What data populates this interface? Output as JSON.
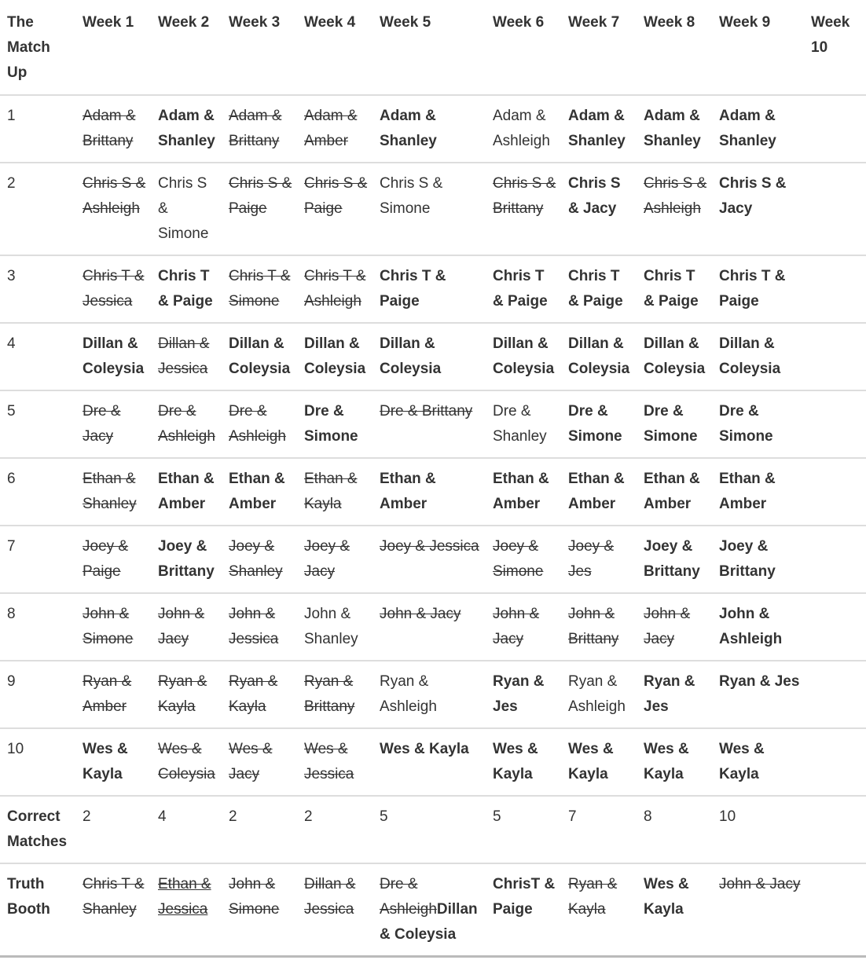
{
  "headers": [
    "The Match Up",
    "Week 1",
    "Week 2",
    "Week 3",
    "Week 4",
    "Week 5",
    "Week 6",
    "Week 7",
    "Week 8",
    "Week 9",
    "Week 10"
  ],
  "rows": [
    {
      "label": "1",
      "label_bold": false,
      "cells": [
        [
          {
            "t": "Adam & Brittany",
            "s": "s"
          }
        ],
        [
          {
            "t": "Adam & Shanley",
            "s": "b"
          }
        ],
        [
          {
            "t": "Adam & Brittany",
            "s": "s"
          }
        ],
        [
          {
            "t": "Adam & Amber",
            "s": "s"
          }
        ],
        [
          {
            "t": "Adam & Shanley",
            "s": "b"
          }
        ],
        [
          {
            "t": "Adam & Ashleigh",
            "s": "n"
          }
        ],
        [
          {
            "t": "Adam & Shanley",
            "s": "b"
          }
        ],
        [
          {
            "t": "Adam & Shanley",
            "s": "b"
          }
        ],
        [
          {
            "t": "Adam & Shanley",
            "s": "b"
          }
        ],
        []
      ]
    },
    {
      "label": "2",
      "label_bold": false,
      "cells": [
        [
          {
            "t": "Chris S & Ashleigh",
            "s": "s"
          }
        ],
        [
          {
            "t": "Chris S & Simone",
            "s": "n"
          }
        ],
        [
          {
            "t": "Chris S & Paige",
            "s": "s"
          }
        ],
        [
          {
            "t": "Chris S & Paige",
            "s": "s"
          }
        ],
        [
          {
            "t": "Chris S & Simone",
            "s": "n"
          }
        ],
        [
          {
            "t": "Chris S & Brittany",
            "s": "s"
          }
        ],
        [
          {
            "t": "Chris S & Jacy",
            "s": "b"
          }
        ],
        [
          {
            "t": "Chris S & Ashleigh",
            "s": "s"
          }
        ],
        [
          {
            "t": "Chris S & Jacy",
            "s": "b"
          }
        ],
        []
      ]
    },
    {
      "label": "3",
      "label_bold": false,
      "cells": [
        [
          {
            "t": "Chris T & Jessica",
            "s": "s"
          }
        ],
        [
          {
            "t": "Chris T & Paige",
            "s": "b"
          }
        ],
        [
          {
            "t": "Chris T & Simone",
            "s": "s"
          }
        ],
        [
          {
            "t": "Chris T & Ashleigh",
            "s": "s"
          }
        ],
        [
          {
            "t": "Chris T & Paige",
            "s": "b"
          }
        ],
        [
          {
            "t": "Chris T & Paige",
            "s": "b"
          }
        ],
        [
          {
            "t": "Chris T & Paige",
            "s": "b"
          }
        ],
        [
          {
            "t": "Chris T & Paige",
            "s": "b"
          }
        ],
        [
          {
            "t": "Chris T & Paige",
            "s": "b"
          }
        ],
        []
      ]
    },
    {
      "label": "4",
      "label_bold": false,
      "cells": [
        [
          {
            "t": "Dillan & Coleysia",
            "s": "b"
          }
        ],
        [
          {
            "t": "Dillan & Jessica",
            "s": "s"
          }
        ],
        [
          {
            "t": "Dillan & Coleysia",
            "s": "b"
          }
        ],
        [
          {
            "t": "Dillan & Coleysia",
            "s": "b"
          }
        ],
        [
          {
            "t": "Dillan & Coleysia",
            "s": "b"
          }
        ],
        [
          {
            "t": "Dillan & Coleysia",
            "s": "b"
          }
        ],
        [
          {
            "t": "Dillan & Coleysia",
            "s": "b"
          }
        ],
        [
          {
            "t": "Dillan & Coleysia",
            "s": "b"
          }
        ],
        [
          {
            "t": "Dillan & Coleysia",
            "s": "b"
          }
        ],
        []
      ]
    },
    {
      "label": "5",
      "label_bold": false,
      "cells": [
        [
          {
            "t": "Dre & Jacy",
            "s": "s"
          }
        ],
        [
          {
            "t": "Dre & Ashleigh",
            "s": "s"
          }
        ],
        [
          {
            "t": "Dre & Ashleigh",
            "s": "s"
          }
        ],
        [
          {
            "t": "Dre & Simone",
            "s": "b"
          }
        ],
        [
          {
            "t": "Dre & Brittany",
            "s": "s"
          }
        ],
        [
          {
            "t": "Dre & Shanley",
            "s": "n"
          }
        ],
        [
          {
            "t": "Dre & Simone",
            "s": "b"
          }
        ],
        [
          {
            "t": "Dre & Simone",
            "s": "b"
          }
        ],
        [
          {
            "t": "Dre & Simone",
            "s": "b"
          }
        ],
        []
      ]
    },
    {
      "label": "6",
      "label_bold": false,
      "cells": [
        [
          {
            "t": "Ethan & Shanley",
            "s": "s"
          }
        ],
        [
          {
            "t": "Ethan & Amber",
            "s": "b"
          }
        ],
        [
          {
            "t": "Ethan & Amber",
            "s": "b"
          }
        ],
        [
          {
            "t": "Ethan & Kayla",
            "s": "s"
          }
        ],
        [
          {
            "t": "Ethan & Amber",
            "s": "b"
          }
        ],
        [
          {
            "t": "Ethan & Amber",
            "s": "b"
          }
        ],
        [
          {
            "t": "Ethan & Amber",
            "s": "b"
          }
        ],
        [
          {
            "t": "Ethan & Amber",
            "s": "b"
          }
        ],
        [
          {
            "t": "Ethan & Amber",
            "s": "b"
          }
        ],
        []
      ]
    },
    {
      "label": "7",
      "label_bold": false,
      "cells": [
        [
          {
            "t": "Joey & Paige",
            "s": "s"
          }
        ],
        [
          {
            "t": "Joey & Brittany",
            "s": "b"
          }
        ],
        [
          {
            "t": "Joey & Shanley",
            "s": "s"
          }
        ],
        [
          {
            "t": "Joey & Jacy",
            "s": "s"
          }
        ],
        [
          {
            "t": "Joey & Jessica",
            "s": "s"
          }
        ],
        [
          {
            "t": "Joey & Simone",
            "s": "s"
          }
        ],
        [
          {
            "t": "Joey & Jes",
            "s": "s"
          }
        ],
        [
          {
            "t": "Joey & Brittany",
            "s": "b"
          }
        ],
        [
          {
            "t": "Joey & Brittany",
            "s": "b"
          }
        ],
        []
      ]
    },
    {
      "label": "8",
      "label_bold": false,
      "cells": [
        [
          {
            "t": "John & Simone",
            "s": "s"
          }
        ],
        [
          {
            "t": "John & Jacy",
            "s": "s"
          }
        ],
        [
          {
            "t": "John & Jessica",
            "s": "s"
          }
        ],
        [
          {
            "t": "John & Shanley",
            "s": "n"
          }
        ],
        [
          {
            "t": "John & Jacy",
            "s": "s"
          }
        ],
        [
          {
            "t": "John & Jacy",
            "s": "s"
          }
        ],
        [
          {
            "t": "John & Brittany",
            "s": "s"
          }
        ],
        [
          {
            "t": "John & Jacy",
            "s": "s"
          }
        ],
        [
          {
            "t": "John & Ashleigh",
            "s": "b"
          }
        ],
        []
      ]
    },
    {
      "label": "9",
      "label_bold": false,
      "cells": [
        [
          {
            "t": "Ryan & Amber",
            "s": "s"
          }
        ],
        [
          {
            "t": "Ryan & Kayla",
            "s": "s"
          }
        ],
        [
          {
            "t": "Ryan & Kayla",
            "s": "s"
          }
        ],
        [
          {
            "t": "Ryan & Brittany",
            "s": "s"
          }
        ],
        [
          {
            "t": "Ryan & Ashleigh",
            "s": "n"
          }
        ],
        [
          {
            "t": "Ryan & Jes",
            "s": "b"
          }
        ],
        [
          {
            "t": "Ryan & Ashleigh",
            "s": "n"
          }
        ],
        [
          {
            "t": "Ryan & Jes",
            "s": "b"
          }
        ],
        [
          {
            "t": "Ryan & Jes",
            "s": "b"
          }
        ],
        []
      ]
    },
    {
      "label": "10",
      "label_bold": false,
      "cells": [
        [
          {
            "t": "Wes & Kayla",
            "s": "b"
          }
        ],
        [
          {
            "t": "Wes & Coleysia",
            "s": "s"
          }
        ],
        [
          {
            "t": "Wes & Jacy",
            "s": "s"
          }
        ],
        [
          {
            "t": "Wes & Jessica",
            "s": "s"
          }
        ],
        [
          {
            "t": "Wes & Kayla",
            "s": "b"
          }
        ],
        [
          {
            "t": "Wes & Kayla",
            "s": "b"
          }
        ],
        [
          {
            "t": "Wes & Kayla",
            "s": "b"
          }
        ],
        [
          {
            "t": "Wes & Kayla",
            "s": "b"
          }
        ],
        [
          {
            "t": "Wes & Kayla",
            "s": "b"
          }
        ],
        []
      ]
    },
    {
      "label": "Correct Matches",
      "label_bold": true,
      "cells": [
        [
          {
            "t": "2",
            "s": "n"
          }
        ],
        [
          {
            "t": "4",
            "s": "n"
          }
        ],
        [
          {
            "t": "2",
            "s": "n"
          }
        ],
        [
          {
            "t": "2",
            "s": "n"
          }
        ],
        [
          {
            "t": "5",
            "s": "n"
          }
        ],
        [
          {
            "t": "5",
            "s": "n"
          }
        ],
        [
          {
            "t": "7",
            "s": "n"
          }
        ],
        [
          {
            "t": "8",
            "s": "n"
          }
        ],
        [
          {
            "t": "10",
            "s": "n"
          }
        ],
        []
      ]
    },
    {
      "label": "Truth Booth",
      "label_bold": true,
      "cells": [
        [
          {
            "t": "Chris T & Shanley",
            "s": "s"
          }
        ],
        [
          {
            "t": "Ethan & Jessica",
            "s": "su"
          }
        ],
        [
          {
            "t": "John & Simone",
            "s": "s"
          }
        ],
        [
          {
            "t": "Dillan & Jessica",
            "s": "s"
          }
        ],
        [
          {
            "t": "Dre & Ashleigh",
            "s": "s"
          },
          {
            "t": "Dillan & Coleysia",
            "s": "b"
          }
        ],
        [
          {
            "t": "ChrisT & Paige",
            "s": "b"
          }
        ],
        [
          {
            "t": "Ryan & Kayla",
            "s": "s"
          }
        ],
        [
          {
            "t": "Wes & Kayla",
            "s": "b"
          }
        ],
        [
          {
            "t": "John & Jacy",
            "s": "s"
          }
        ],
        []
      ]
    }
  ]
}
